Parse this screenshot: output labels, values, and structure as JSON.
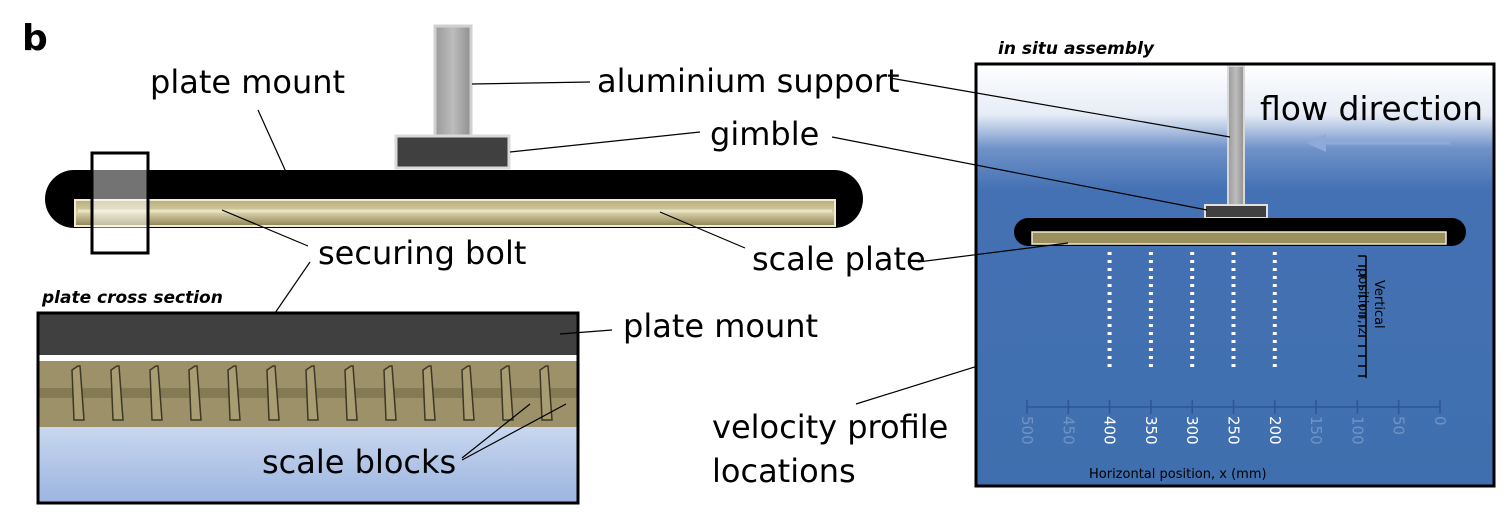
{
  "panel_letter": "b",
  "labels": {
    "plate_mount_top": "plate mount",
    "aluminium_support": "aluminium support",
    "gimble": "gimble",
    "securing_bolt": "securing bolt",
    "scale_plate": "scale plate",
    "plate_mount_section": "plate mount",
    "scale_blocks": "scale blocks",
    "velocity_profile_line1": "velocity profile",
    "velocity_profile_line2": "locations",
    "flow_direction": "flow direction"
  },
  "insets": {
    "cross_section_title": "plate cross section",
    "in_situ_title": "in situ assembly"
  },
  "in_situ_axes": {
    "x_label": "Horizontal position, x (mm)",
    "x_ticks": [
      "500",
      "450",
      "400",
      "350",
      "300",
      "250",
      "200",
      "150",
      "100",
      "50",
      "0"
    ],
    "profile_x_positions": [
      400,
      350,
      300,
      250,
      200
    ],
    "z_label_line1": "Vertical",
    "z_label_line2": "position, z"
  },
  "colors": {
    "plate_mount": "#000000",
    "scale_plate": "#9b8f5e",
    "aluminium_support": "#a6a6a6",
    "gimble": "#404040",
    "water": "#3f6fae",
    "flow_arrow": "#8eaadb"
  }
}
